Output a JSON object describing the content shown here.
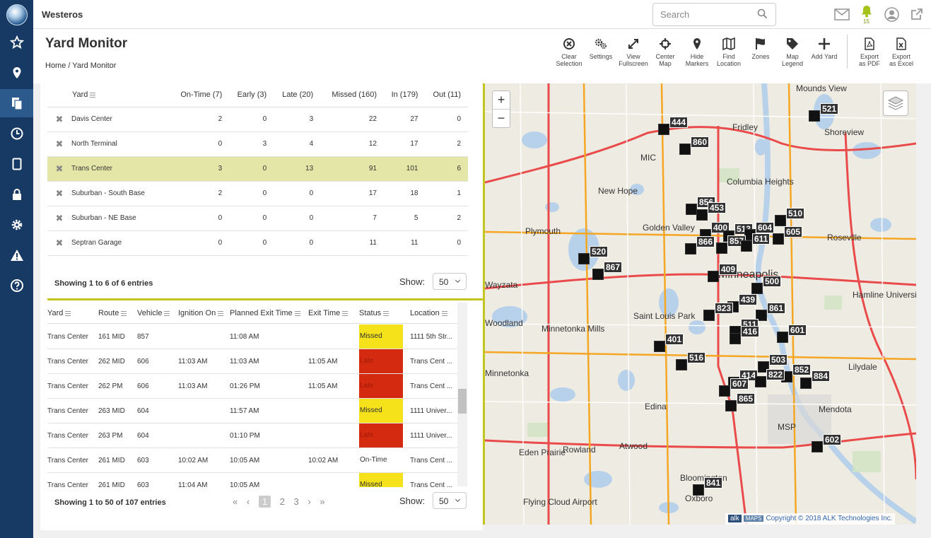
{
  "app": {
    "name": "Westeros"
  },
  "search": {
    "placeholder": "Search"
  },
  "notifications": {
    "count": "15"
  },
  "header": {
    "title": "Yard Monitor",
    "breadcrumb": "Home / Yard Monitor"
  },
  "toolbar": [
    {
      "key": "clear",
      "l1": "Clear",
      "l2": "Selection"
    },
    {
      "key": "settings",
      "l1": "Settings",
      "l2": ""
    },
    {
      "key": "fullscreen",
      "l1": "View",
      "l2": "Fullscreen"
    },
    {
      "key": "center",
      "l1": "Center",
      "l2": "Map"
    },
    {
      "key": "markers",
      "l1": "Hide",
      "l2": "Markers"
    },
    {
      "key": "find",
      "l1": "Find",
      "l2": "Location"
    },
    {
      "key": "zones",
      "l1": "Zones",
      "l2": ""
    },
    {
      "key": "legend",
      "l1": "Map",
      "l2": "Legend"
    },
    {
      "key": "addyard",
      "l1": "Add Yard",
      "l2": ""
    },
    {
      "key": "pdf",
      "l1": "Export",
      "l2": "as PDF"
    },
    {
      "key": "excel",
      "l1": "Export",
      "l2": "as Excel"
    }
  ],
  "yard_table": {
    "headers": [
      "Yard",
      "On-Time (7)",
      "Early (3)",
      "Late (20)",
      "Missed (160)",
      "In (179)",
      "Out (11)"
    ],
    "rows": [
      {
        "yard": "Davis Center",
        "ontime": "2",
        "early": "0",
        "late": "3",
        "missed": "22",
        "in": "27",
        "out": "0",
        "selected": false
      },
      {
        "yard": "North Terminal",
        "ontime": "0",
        "early": "3",
        "late": "4",
        "missed": "12",
        "in": "17",
        "out": "2",
        "selected": false
      },
      {
        "yard": "Trans Center",
        "ontime": "3",
        "early": "0",
        "late": "13",
        "missed": "91",
        "in": "101",
        "out": "6",
        "selected": true
      },
      {
        "yard": "Suburban - South Base",
        "ontime": "2",
        "early": "0",
        "late": "0",
        "missed": "17",
        "in": "18",
        "out": "1",
        "selected": false
      },
      {
        "yard": "Suburban - NE Base",
        "ontime": "0",
        "early": "0",
        "late": "0",
        "missed": "7",
        "in": "5",
        "out": "2",
        "selected": false
      },
      {
        "yard": "Septran Garage",
        "ontime": "0",
        "early": "0",
        "late": "0",
        "missed": "11",
        "in": "11",
        "out": "0",
        "selected": false
      }
    ],
    "info": "Showing 1 to 6 of 6 entries",
    "show_label": "Show:",
    "show_value": "50"
  },
  "route_table": {
    "headers": [
      "Yard",
      "Route",
      "Vehicle",
      "Ignition On",
      "Planned Exit Time",
      "Exit Time",
      "Status",
      "Location"
    ],
    "rows": [
      {
        "yard": "Trans Center",
        "route": "161 MID",
        "vehicle": "857",
        "ignition": "",
        "planned": "11:08 AM",
        "exit": "",
        "status": "Missed",
        "status_type": "missed",
        "location": "1111 5th Str..."
      },
      {
        "yard": "Trans Center",
        "route": "262 MID",
        "vehicle": "606",
        "ignition": "11:03 AM",
        "planned": "11:03 AM",
        "exit": "11:05 AM",
        "status": "Late",
        "status_type": "late",
        "location": "Trans Cent ..."
      },
      {
        "yard": "Trans Center",
        "route": "262 PM",
        "vehicle": "606",
        "ignition": "11:03 AM",
        "planned": "01:26 PM",
        "exit": "11:05 AM",
        "status": "Late",
        "status_type": "late",
        "location": "Trans Cent ..."
      },
      {
        "yard": "Trans Center",
        "route": "263 MID",
        "vehicle": "604",
        "ignition": "",
        "planned": "11:57 AM",
        "exit": "",
        "status": "Missed",
        "status_type": "missed",
        "location": "1111 Univer..."
      },
      {
        "yard": "Trans Center",
        "route": "263 PM",
        "vehicle": "604",
        "ignition": "",
        "planned": "01:10 PM",
        "exit": "",
        "status": "Late",
        "status_type": "late",
        "location": "1111 Univer..."
      },
      {
        "yard": "Trans Center",
        "route": "261 MID",
        "vehicle": "603",
        "ignition": "10:02 AM",
        "planned": "10:05 AM",
        "exit": "10:02 AM",
        "status": "On-Time",
        "status_type": "ontime",
        "location": "Trans Cent ..."
      },
      {
        "yard": "Trans Center",
        "route": "261 MID",
        "vehicle": "603",
        "ignition": "11:04 AM",
        "planned": "10:05 AM",
        "exit": "",
        "status": "Missed",
        "status_type": "missed",
        "location": "Trans Cent ..."
      }
    ],
    "info": "Showing 1 to 50 of 107 entries",
    "show_label": "Show:",
    "show_value": "50",
    "pages": [
      "1",
      "2",
      "3"
    ]
  },
  "map": {
    "copyright": "Copyright © 2018 ALK Technologies Inc.",
    "brand": "alk",
    "maps_label": "MAPS",
    "places": [
      {
        "name": "Mounds View",
        "big": false
      },
      {
        "name": "Fridley",
        "big": false
      },
      {
        "name": "Shoreview",
        "big": false
      },
      {
        "name": "MIC",
        "big": false
      },
      {
        "name": "Columbia Heights",
        "big": false
      },
      {
        "name": "New Hope",
        "big": false
      },
      {
        "name": "Plymouth",
        "big": false
      },
      {
        "name": "Golden Valley",
        "big": false
      },
      {
        "name": "Roseville",
        "big": false
      },
      {
        "name": "Minneapolis",
        "big": true
      },
      {
        "name": "Wayzata",
        "big": false
      },
      {
        "name": "Hamline University",
        "big": false
      },
      {
        "name": "Saint Louis Park",
        "big": false
      },
      {
        "name": "Minnetonka Mills",
        "big": false
      },
      {
        "name": "Woodland",
        "big": false
      },
      {
        "name": "Minnetonka",
        "big": false
      },
      {
        "name": "Lilydale",
        "big": false
      },
      {
        "name": "Edina",
        "big": false
      },
      {
        "name": "Mendota",
        "big": false
      },
      {
        "name": "MSP",
        "big": false
      },
      {
        "name": "Eden Prairie",
        "big": false
      },
      {
        "name": "Rowland",
        "big": false
      },
      {
        "name": "Atwood",
        "big": false
      },
      {
        "name": "Bloomington",
        "big": false
      },
      {
        "name": "Flying Cloud Airport",
        "big": false
      },
      {
        "name": "Oxboro",
        "big": false
      }
    ],
    "markers": [
      "521",
      "444",
      "860",
      "856",
      "453",
      "510",
      "400",
      "513",
      "604",
      "605",
      "866",
      "857",
      "611",
      "520",
      "867",
      "409",
      "500",
      "439",
      "823",
      "861",
      "511",
      "416",
      "601",
      "401",
      "516",
      "503",
      "852",
      "414",
      "822",
      "884",
      "607",
      "865",
      "602",
      "841"
    ]
  }
}
